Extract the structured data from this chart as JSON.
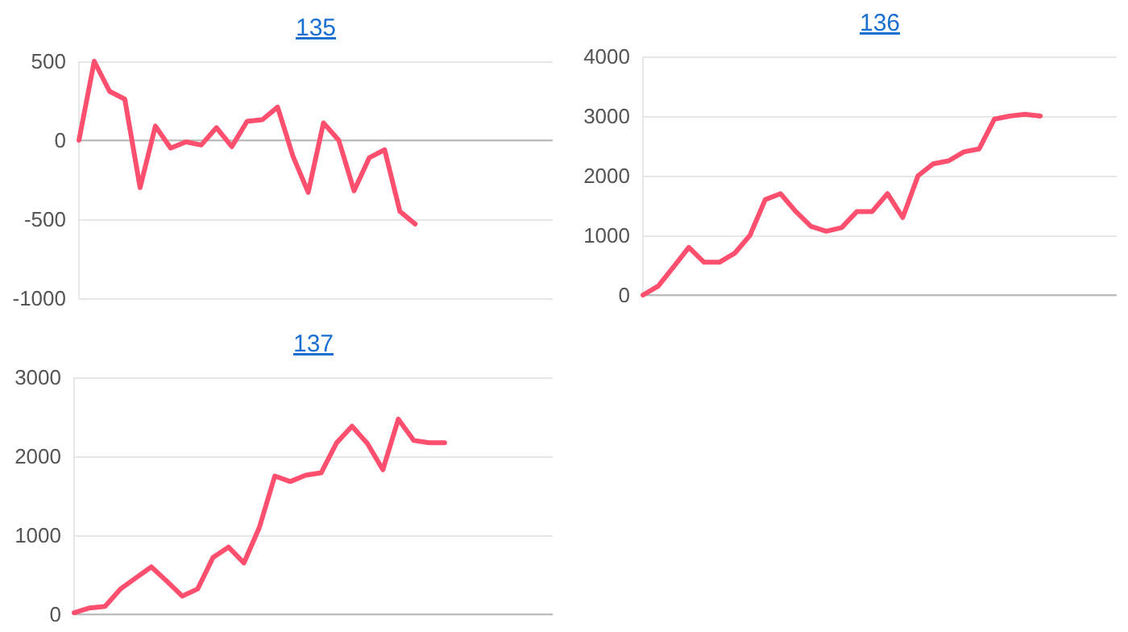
{
  "chart_data": [
    {
      "type": "line",
      "title": "135",
      "categories": [
        null,
        null,
        null,
        null,
        null,
        null,
        null,
        null,
        null,
        null,
        null,
        null,
        null,
        null,
        null,
        null,
        null,
        null,
        null,
        null,
        null,
        null,
        null,
        null,
        null,
        null,
        null,
        null,
        null,
        null,
        null,
        null
      ],
      "series": [
        {
          "color": "#ff4f6e",
          "values": [
            0,
            500,
            310,
            260,
            -300,
            90,
            -50,
            -10,
            -30,
            80,
            -40,
            120,
            130,
            210,
            -100,
            -330,
            110,
            0,
            -320,
            -110,
            -60,
            -450,
            -530,
            null,
            null,
            null,
            null,
            null,
            null,
            null,
            null,
            null
          ]
        }
      ],
      "ylim": [
        -1000,
        500
      ],
      "yticks": [
        -1000,
        -500,
        0,
        500
      ],
      "grid": "y",
      "tick_labels": "y"
    },
    {
      "type": "line",
      "title": "136",
      "categories": [
        null,
        null,
        null,
        null,
        null,
        null,
        null,
        null,
        null,
        null,
        null,
        null,
        null,
        null,
        null,
        null,
        null,
        null,
        null,
        null,
        null,
        null,
        null,
        null,
        null,
        null,
        null,
        null,
        null,
        null,
        null,
        null
      ],
      "series": [
        {
          "color": "#ff4f6e",
          "values": [
            0,
            150,
            470,
            800,
            550,
            550,
            700,
            1000,
            1600,
            1700,
            1400,
            1150,
            1070,
            1130,
            1400,
            1400,
            1700,
            1300,
            2000,
            2200,
            2250,
            2400,
            2450,
            2950,
            3000,
            3030,
            3000,
            null,
            null,
            null,
            null,
            null
          ]
        }
      ],
      "ylim": [
        0,
        4000
      ],
      "yticks": [
        0,
        1000,
        2000,
        3000,
        4000
      ],
      "grid": "y",
      "tick_labels": "y"
    },
    {
      "type": "line",
      "title": "137",
      "categories": [
        null,
        null,
        null,
        null,
        null,
        null,
        null,
        null,
        null,
        null,
        null,
        null,
        null,
        null,
        null,
        null,
        null,
        null,
        null,
        null,
        null,
        null,
        null,
        null,
        null,
        null,
        null,
        null,
        null,
        null,
        null,
        null
      ],
      "series": [
        {
          "color": "#ff4f6e",
          "values": [
            20,
            80,
            100,
            320,
            460,
            600,
            420,
            230,
            320,
            720,
            850,
            650,
            1100,
            1750,
            1680,
            1760,
            1790,
            2170,
            2380,
            2160,
            1830,
            2470,
            2200,
            2170,
            2170,
            null,
            null,
            null,
            null,
            null,
            null,
            null
          ]
        }
      ],
      "ylim": [
        0,
        3000
      ],
      "yticks": [
        0,
        1000,
        2000,
        3000
      ],
      "grid": "y",
      "tick_labels": "y"
    }
  ]
}
